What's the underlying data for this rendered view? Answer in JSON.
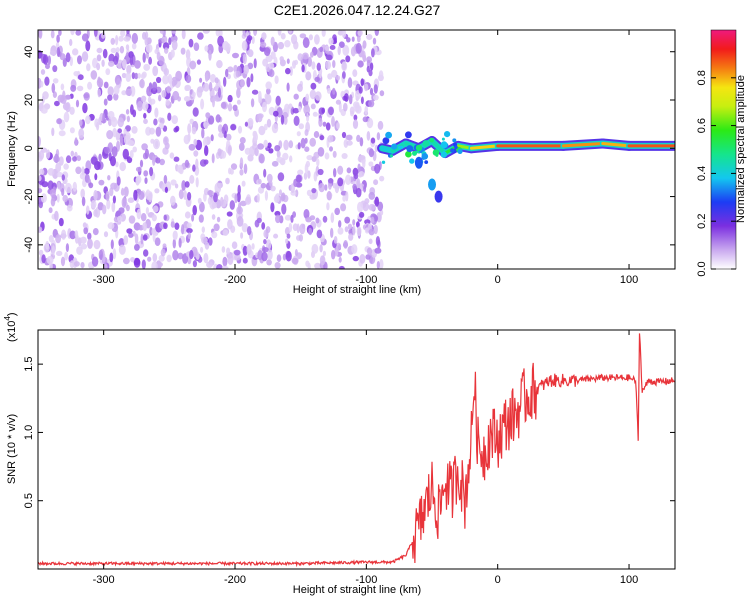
{
  "chart_data": [
    {
      "type": "heatmap",
      "title": "C2E1.2026.047.12.24.G27",
      "xlabel": "Height of straight line (km)",
      "ylabel": "Frequency (Hz)",
      "xlim": [
        -350,
        135
      ],
      "ylim": [
        -50,
        49
      ],
      "xticks": [
        -300,
        -200,
        -100,
        0,
        100
      ],
      "yticks": [
        -40,
        -20,
        0,
        20,
        40
      ],
      "colorbar": {
        "label": "Normalized spectral amplitude",
        "range": [
          0,
          1
        ],
        "ticks": [
          "0.0",
          "0.2",
          "0.4",
          "0.6",
          "0.8"
        ],
        "tick_values": [
          0.0,
          0.2,
          0.4,
          0.6,
          0.8
        ]
      },
      "features": {
        "noise_region_x": [
          -350,
          -88
        ],
        "signal_line": [
          {
            "x": -88,
            "f": 0,
            "amp": 0.35
          },
          {
            "x": -80,
            "f": -1,
            "amp": 0.45
          },
          {
            "x": -70,
            "f": 2,
            "amp": 0.45
          },
          {
            "x": -60,
            "f": 0,
            "amp": 0.45
          },
          {
            "x": -50,
            "f": 3,
            "amp": 0.4
          },
          {
            "x": -40,
            "f": -2,
            "amp": 0.5
          },
          {
            "x": -30,
            "f": 1,
            "amp": 0.6
          },
          {
            "x": -20,
            "f": 0,
            "amp": 0.7
          },
          {
            "x": 0,
            "f": 1,
            "amp": 0.85
          },
          {
            "x": 50,
            "f": 1,
            "amp": 0.9
          },
          {
            "x": 80,
            "f": 2,
            "amp": 0.75
          },
          {
            "x": 100,
            "f": 1,
            "amp": 0.85
          },
          {
            "x": 135,
            "f": 1,
            "amp": 0.9
          }
        ],
        "branch": [
          {
            "x": -60,
            "f": -6,
            "amp": 0.3
          },
          {
            "x": -50,
            "f": -15,
            "amp": 0.35
          },
          {
            "x": -45,
            "f": -20,
            "amp": 0.25
          }
        ]
      }
    },
    {
      "type": "line",
      "xlabel": "Height of straight line (km)",
      "ylabel": "SNR (10 * v/v)",
      "y_multiplier": "(x10",
      "y_exponent": "4",
      "y_multiplier_close": ")",
      "xlim": [
        -350,
        135
      ],
      "ylim": [
        0,
        1.75
      ],
      "xticks": [
        -300,
        -200,
        -100,
        0,
        100
      ],
      "yticks": [
        0.5,
        1.0,
        1.5
      ],
      "ytick_labels": [
        "0.5",
        "1.0",
        "1.5"
      ],
      "color": "#e8343a",
      "series": [
        {
          "name": "SNR",
          "x": [
            -350,
            -300,
            -250,
            -200,
            -150,
            -100,
            -80,
            -70,
            -60,
            -55,
            -50,
            -45,
            -40,
            -35,
            -30,
            -25,
            -20,
            -18,
            -15,
            -10,
            -5,
            0,
            5,
            10,
            15,
            20,
            30,
            40,
            60,
            80,
            100,
            105,
            107,
            108,
            110,
            115,
            120,
            135
          ],
          "y": [
            0.04,
            0.04,
            0.04,
            0.04,
            0.04,
            0.05,
            0.05,
            0.1,
            0.3,
            0.45,
            0.6,
            0.4,
            0.65,
            0.55,
            0.75,
            0.5,
            0.95,
            1.4,
            0.9,
            0.85,
            1.0,
            0.95,
            1.05,
            1.1,
            1.15,
            1.25,
            1.32,
            1.38,
            1.38,
            1.4,
            1.4,
            1.38,
            0.95,
            1.75,
            1.3,
            1.38,
            1.37,
            1.38
          ]
        }
      ]
    }
  ]
}
